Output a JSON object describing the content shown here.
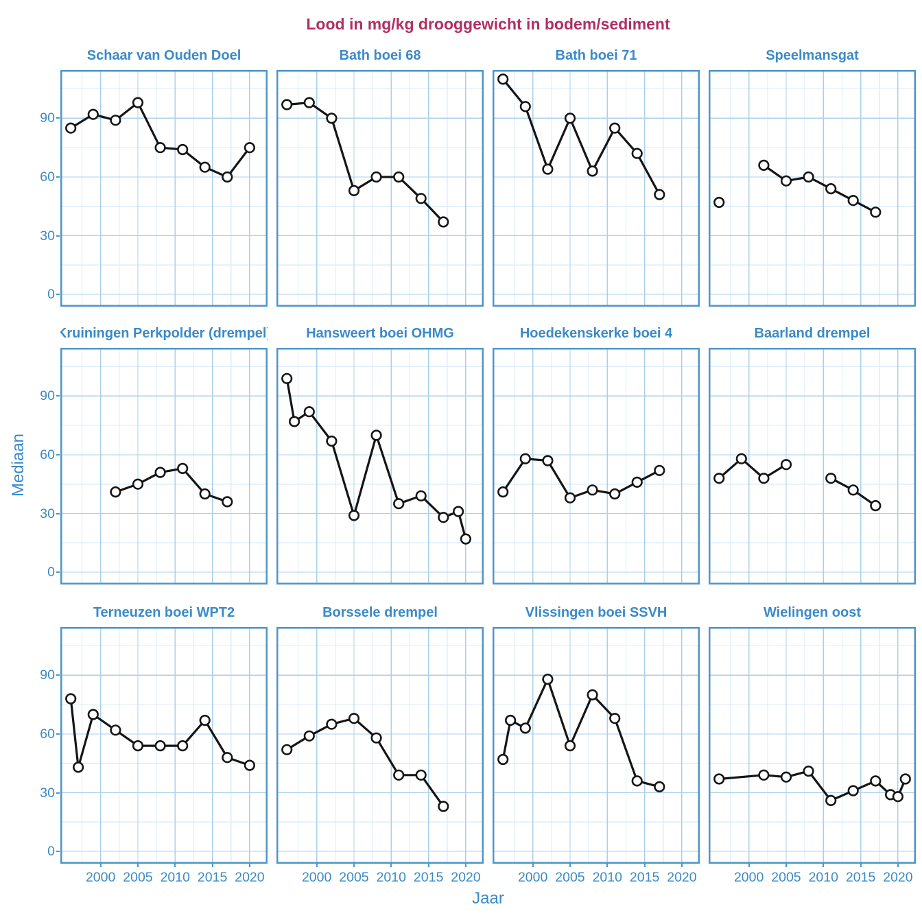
{
  "colors": {
    "title": "#b02f62",
    "axis_text": "#3a8ac8",
    "facet_title": "#3a8ac8",
    "panel_border": "#4d96c8",
    "grid_major": "#abd0e8",
    "grid_minor": "#d9ecf8",
    "line": "#151515",
    "marker_fill": "#ffffff"
  },
  "chart_data": {
    "type": "line",
    "title": "Lood in mg/kg drooggewicht in bodem/sediment",
    "xlabel": "Jaar",
    "ylabel": "Mediaan",
    "x_ticks": [
      2000,
      2005,
      2010,
      2015,
      2020
    ],
    "y_ticks": [
      90,
      60,
      30,
      0
    ],
    "xlim": [
      1994.6,
      2022.4
    ],
    "ylim": [
      -6.3,
      114.7
    ],
    "grid": "major and minor gridlines, light blue, on white panels",
    "legend_position": "none",
    "facets_grid": {
      "rows": 3,
      "cols": 4
    },
    "marker": {
      "shape": "open-circle",
      "fill": "#ffffff",
      "stroke": "#151515"
    },
    "panels": [
      {
        "title": "Schaar van Ouden Doel",
        "segments": [
          [
            [
              1996,
              85
            ],
            [
              1999,
              92
            ],
            [
              2002,
              89
            ],
            [
              2005,
              98
            ],
            [
              2008,
              75
            ],
            [
              2011,
              74
            ],
            [
              2014,
              65
            ],
            [
              2017,
              60
            ],
            [
              2020,
              75
            ]
          ]
        ]
      },
      {
        "title": "Bath boei 68",
        "segments": [
          [
            [
              1996,
              97
            ],
            [
              1999,
              98
            ],
            [
              2002,
              90
            ],
            [
              2005,
              53
            ],
            [
              2008,
              60
            ],
            [
              2011,
              60
            ],
            [
              2014,
              49
            ],
            [
              2017,
              37
            ]
          ]
        ]
      },
      {
        "title": "Bath boei 71",
        "segments": [
          [
            [
              1996,
              110
            ],
            [
              1999,
              96
            ],
            [
              2002,
              64
            ],
            [
              2005,
              90
            ],
            [
              2008,
              63
            ],
            [
              2011,
              85
            ],
            [
              2014,
              72
            ],
            [
              2017,
              51
            ]
          ]
        ]
      },
      {
        "title": "Speelmansgat",
        "segments": [
          [
            [
              1996,
              47
            ]
          ],
          [
            [
              2002,
              66
            ],
            [
              2005,
              58
            ],
            [
              2008,
              60
            ],
            [
              2011,
              54
            ],
            [
              2014,
              48
            ],
            [
              2017,
              42
            ]
          ]
        ]
      },
      {
        "title": "Kruiningen Perkpolder (drempel)",
        "segments": [
          [
            [
              2002,
              41
            ],
            [
              2005,
              45
            ],
            [
              2008,
              51
            ],
            [
              2011,
              53
            ],
            [
              2014,
              40
            ],
            [
              2017,
              36
            ]
          ]
        ]
      },
      {
        "title": "Hansweert boei OHMG",
        "segments": [
          [
            [
              1996,
              99
            ],
            [
              1997,
              77
            ],
            [
              1999,
              82
            ],
            [
              2002,
              67
            ],
            [
              2005,
              29
            ],
            [
              2008,
              70
            ],
            [
              2011,
              35
            ],
            [
              2014,
              39
            ],
            [
              2017,
              28
            ],
            [
              2019,
              31
            ],
            [
              2020,
              17
            ]
          ]
        ]
      },
      {
        "title": "Hoedekenskerke boei 4",
        "segments": [
          [
            [
              1996,
              41
            ],
            [
              1999,
              58
            ],
            [
              2002,
              57
            ],
            [
              2005,
              38
            ],
            [
              2008,
              42
            ],
            [
              2011,
              40
            ],
            [
              2014,
              46
            ],
            [
              2017,
              52
            ]
          ]
        ]
      },
      {
        "title": "Baarland drempel",
        "segments": [
          [
            [
              1996,
              48
            ],
            [
              1999,
              58
            ],
            [
              2002,
              48
            ],
            [
              2005,
              55
            ]
          ],
          [
            [
              2011,
              48
            ],
            [
              2014,
              42
            ],
            [
              2017,
              34
            ]
          ]
        ]
      },
      {
        "title": "Terneuzen boei WPT2",
        "segments": [
          [
            [
              1996,
              78
            ],
            [
              1997,
              43
            ],
            [
              1999,
              70
            ],
            [
              2002,
              62
            ],
            [
              2005,
              54
            ],
            [
              2008,
              54
            ],
            [
              2011,
              54
            ],
            [
              2014,
              67
            ],
            [
              2017,
              48
            ],
            [
              2020,
              44
            ]
          ]
        ]
      },
      {
        "title": "Borssele drempel",
        "segments": [
          [
            [
              1996,
              52
            ],
            [
              1999,
              59
            ],
            [
              2002,
              65
            ],
            [
              2005,
              68
            ],
            [
              2008,
              58
            ],
            [
              2011,
              39
            ],
            [
              2014,
              39
            ],
            [
              2017,
              23
            ]
          ]
        ]
      },
      {
        "title": "Vlissingen boei SSVH",
        "segments": [
          [
            [
              1996,
              47
            ],
            [
              1997,
              67
            ],
            [
              1999,
              63
            ],
            [
              2002,
              88
            ],
            [
              2005,
              54
            ],
            [
              2008,
              80
            ],
            [
              2011,
              68
            ],
            [
              2014,
              36
            ],
            [
              2017,
              33
            ]
          ]
        ]
      },
      {
        "title": "Wielingen oost",
        "segments": [
          [
            [
              1996,
              37
            ],
            [
              2002,
              39
            ],
            [
              2005,
              38
            ],
            [
              2008,
              41
            ],
            [
              2011,
              26
            ],
            [
              2014,
              31
            ],
            [
              2017,
              36
            ],
            [
              2019,
              29
            ],
            [
              2020,
              28
            ],
            [
              2021,
              37
            ]
          ]
        ]
      }
    ]
  }
}
